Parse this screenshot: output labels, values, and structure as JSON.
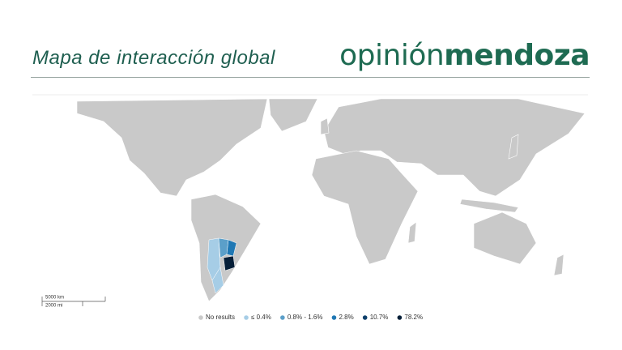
{
  "header": {
    "title": "Mapa de interacción global",
    "logo_light": "opinión",
    "logo_bold": "mendoza"
  },
  "map": {
    "scale": {
      "km": "5000 km",
      "mi": "2000 mi"
    },
    "legend": [
      {
        "label": "No results",
        "color": "#c9c9c9"
      },
      {
        "label": "≤ 0.4%",
        "color": "#a6cde6"
      },
      {
        "label": "0.8% - 1.6%",
        "color": "#5b9fc9"
      },
      {
        "label": "2.8%",
        "color": "#1f78b4"
      },
      {
        "label": "10.7%",
        "color": "#0d3f6b"
      },
      {
        "label": "78.2%",
        "color": "#061f38"
      }
    ]
  }
}
